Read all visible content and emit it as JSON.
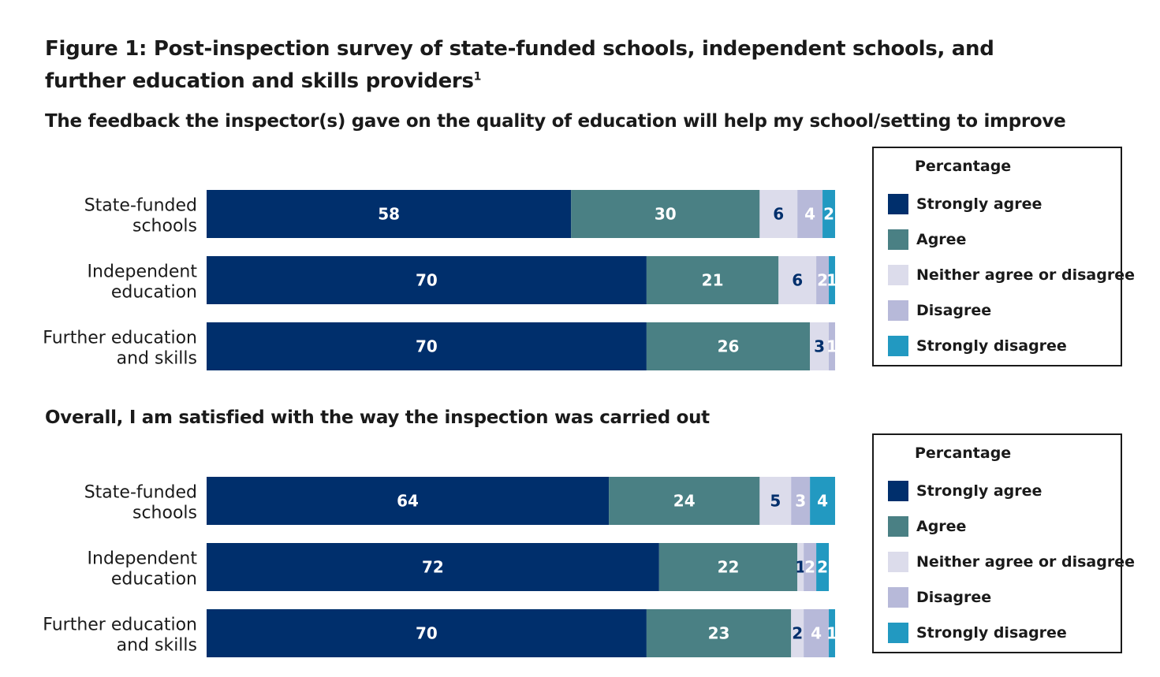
{
  "figure": {
    "title": "Figure 1:  Post-inspection survey of state-funded schools, independent schools, and further education and skills providers",
    "footnote_mark": "1"
  },
  "legend": {
    "title": "Percantage",
    "items": [
      {
        "label": "Strongly agree",
        "color": "#002F6C"
      },
      {
        "label": "Agree",
        "color": "#4A8084"
      },
      {
        "label": "Neither agree or disagree",
        "color": "#DCDCEB"
      },
      {
        "label": "Disagree",
        "color": "#B7B9D9"
      },
      {
        "label": "Strongly disagree",
        "color": "#2299C1"
      }
    ]
  },
  "chart_data": [
    {
      "type": "bar",
      "orientation": "horizontal",
      "stacked": true,
      "title": "The feedback the inspector(s) gave on the quality of education will help my school/setting to improve",
      "categories": [
        [
          "State-funded",
          "schools"
        ],
        [
          "Independent",
          "education"
        ],
        [
          "Further education",
          "and skills"
        ]
      ],
      "series": [
        {
          "name": "Strongly agree",
          "values": [
            58,
            70,
            70
          ],
          "color": "#002F6C",
          "label_color": "#ffffff"
        },
        {
          "name": "Agree",
          "values": [
            30,
            21,
            26
          ],
          "color": "#4A8084",
          "label_color": "#ffffff"
        },
        {
          "name": "Neither agree or disagree",
          "values": [
            6,
            6,
            3
          ],
          "color": "#DCDCEB",
          "label_color": "#002F6C"
        },
        {
          "name": "Disagree",
          "values": [
            4,
            2,
            1
          ],
          "color": "#B7B9D9",
          "label_color": "#ffffff"
        },
        {
          "name": "Strongly disagree",
          "values": [
            2,
            1,
            0
          ],
          "color": "#2299C1",
          "label_color": "#ffffff"
        }
      ],
      "xlim": [
        0,
        100
      ],
      "legend_title": "Percantage",
      "legend_position": "right"
    },
    {
      "type": "bar",
      "orientation": "horizontal",
      "stacked": true,
      "title": "Overall, I am satisfied with the way the inspection was carried out",
      "categories": [
        [
          "State-funded",
          "schools"
        ],
        [
          "Independent",
          "education"
        ],
        [
          "Further education",
          "and skills"
        ]
      ],
      "series": [
        {
          "name": "Strongly agree",
          "values": [
            64,
            72,
            70
          ],
          "color": "#002F6C",
          "label_color": "#ffffff"
        },
        {
          "name": "Agree",
          "values": [
            24,
            22,
            23
          ],
          "color": "#4A8084",
          "label_color": "#ffffff"
        },
        {
          "name": "Neither agree or disagree",
          "values": [
            5,
            1,
            2
          ],
          "color": "#DCDCEB",
          "label_color": "#002F6C"
        },
        {
          "name": "Disagree",
          "values": [
            3,
            2,
            4
          ],
          "color": "#B7B9D9",
          "label_color": "#ffffff"
        },
        {
          "name": "Strongly disagree",
          "values": [
            4,
            2,
            1
          ],
          "color": "#2299C1",
          "label_color": "#ffffff"
        }
      ],
      "xlim": [
        0,
        100
      ],
      "legend_title": "Percantage",
      "legend_position": "right"
    }
  ]
}
